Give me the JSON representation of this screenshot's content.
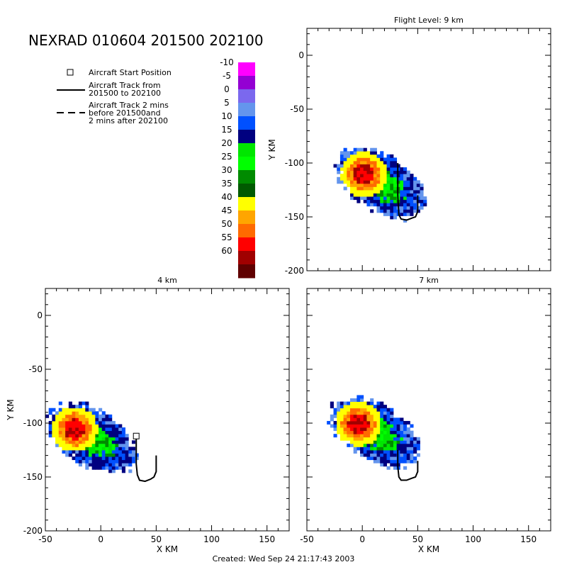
{
  "title": "NEXRAD 010604 201500 202100",
  "footer": "Created: Wed Sep 24 21:17:43 2003",
  "legend": {
    "start": "Aircraft Start Position",
    "track_line1": "Aircraft Track from",
    "track_line2": "201500 to 202100",
    "dashed_line1": "Aircraft Track 2 mins",
    "dashed_line2": "before 201500and",
    "dashed_line3": "2 mins after 202100"
  },
  "colorbar": {
    "labels": [
      "-10",
      "-5",
      "0",
      "5",
      "10",
      "15",
      "20",
      "25",
      "30",
      "35",
      "40",
      "45",
      "50",
      "55",
      "60"
    ],
    "colors": [
      "#ff00ff",
      "#9400d3",
      "#7b68ee",
      "#6495ed",
      "#0050ff",
      "#000080",
      "#00e600",
      "#00ff00",
      "#008b00",
      "#005a00",
      "#ffff00",
      "#ffa500",
      "#ff6a00",
      "#ff0000",
      "#a00000",
      "#600000"
    ]
  },
  "chart_data": [
    {
      "type": "heatmap",
      "title": "Flight Level: 9 km",
      "xlabel": "",
      "ylabel": "Y KM",
      "xlim": [
        -50,
        170
      ],
      "ylim": [
        -200,
        25
      ],
      "xticks": [],
      "yticks": [
        0,
        -50,
        -100,
        -150,
        -200
      ],
      "storm_center": [
        15,
        -120
      ],
      "track_x": [
        32,
        32,
        33,
        35,
        40,
        45,
        48,
        50,
        50,
        50
      ],
      "track_y": [
        -100,
        -130,
        -148,
        -152,
        -153,
        -151,
        -150,
        -145,
        -135,
        -130
      ]
    },
    {
      "type": "heatmap",
      "title": "4 km",
      "xlabel": "X KM",
      "ylabel": "Y KM",
      "xlim": [
        -50,
        170
      ],
      "ylim": [
        -200,
        25
      ],
      "xticks": [
        -50,
        0,
        50,
        100,
        150
      ],
      "yticks": [
        0,
        -50,
        -100,
        -150,
        -200
      ],
      "storm_center": [
        -10,
        -115
      ],
      "start_x": 32,
      "start_y": -112,
      "track_x": [
        32,
        32,
        32,
        33,
        35,
        40,
        45,
        48,
        50,
        50,
        50
      ],
      "track_y": [
        -112,
        -125,
        -138,
        -148,
        -153,
        -154,
        -152,
        -150,
        -145,
        -138,
        -130
      ]
    },
    {
      "type": "heatmap",
      "title": "7 km",
      "xlabel": "X KM",
      "ylabel": "",
      "xlim": [
        -50,
        170
      ],
      "ylim": [
        -200,
        25
      ],
      "xticks": [
        -50,
        0,
        50,
        100,
        150
      ],
      "yticks": [],
      "storm_center": [
        10,
        -110
      ],
      "track_x": [
        32,
        32,
        33,
        35,
        40,
        45,
        48,
        50,
        50
      ],
      "track_y": [
        -125,
        -140,
        -150,
        -153,
        -153,
        -151,
        -150,
        -145,
        -135
      ]
    }
  ]
}
